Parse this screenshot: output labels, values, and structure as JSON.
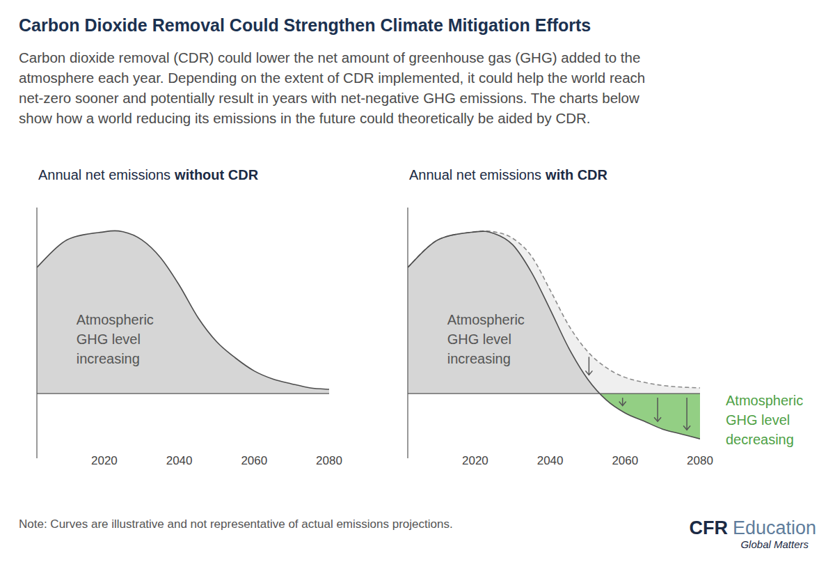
{
  "header": {
    "title": "Carbon Dioxide Removal Could Strengthen Climate Mitigation Efforts",
    "subtitle": [
      "Carbon dioxide removal (CDR) could lower the net amount of greenhouse gas (GHG) added to the",
      "atmosphere each year. Depending on the extent of CDR implemented, it could help the world reach",
      "net-zero sooner and potentially result in years with net-negative GHG emissions. The charts below",
      "show how a world reducing its emissions in the future could theoretically be aided by CDR."
    ]
  },
  "chart_data": [
    {
      "type": "area",
      "title": "Annual net emissions without CDR",
      "x": [
        2002,
        2010,
        2020,
        2025,
        2030,
        2035,
        2040,
        2045,
        2050,
        2055,
        2060,
        2065,
        2070,
        2075,
        2080
      ],
      "series": [
        {
          "values": [
            78,
            95,
            100,
            100,
            95,
            84,
            67,
            47,
            32,
            22,
            14,
            9,
            6,
            3.5,
            2.6
          ],
          "color": "#d6d6d6",
          "line_style": "solid"
        }
      ],
      "xlim": [
        2002,
        2080
      ],
      "ylim": [
        -40,
        115
      ],
      "xticks": [
        2020,
        2040,
        2060,
        2080
      ],
      "tick_labels": "x",
      "annotations": [
        {
          "lines": [
            "Atmospheric",
            "GHG level",
            "increasing"
          ]
        }
      ]
    },
    {
      "type": "area",
      "title": "Annual net emissions with CDR",
      "x": [
        2002,
        2010,
        2020,
        2025,
        2030,
        2035,
        2040,
        2045,
        2050,
        2055,
        2060,
        2065,
        2070,
        2075,
        2080
      ],
      "series": [
        {
          "values": [
            78,
            95,
            100,
            99,
            92,
            75,
            52,
            28,
            9,
            -4,
            -12,
            -17,
            -22,
            -25,
            -28
          ],
          "color": "#d6d6d6",
          "line_style": "solid"
        },
        {
          "values": [
            78,
            95,
            100,
            100,
            96,
            85,
            64,
            42,
            26,
            16,
            10,
            7,
            5,
            4,
            3.5
          ],
          "color": "#efefef",
          "line_style": "dashed"
        }
      ],
      "xlim": [
        2002,
        2080
      ],
      "ylim": [
        -40,
        115
      ],
      "xticks": [
        2020,
        2040,
        2060,
        2080
      ],
      "tick_labels": "x",
      "annotations": [
        {
          "lines": [
            "Atmospheric",
            "GHG level",
            "increasing"
          ]
        },
        {
          "lines": [
            "Atmospheric",
            "GHG level",
            "decreasing"
          ],
          "color": "#4ea145"
        }
      ]
    }
  ],
  "footer": {
    "note": "Note: Curves are illustrative and not representative of actual emissions projections.",
    "brand": "CFR Education",
    "tagline": "Global Matters"
  }
}
